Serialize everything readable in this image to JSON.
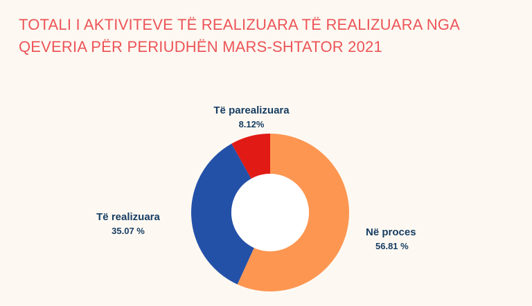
{
  "title": {
    "line1": "TOTALI I AKTIVITEVE TË REALIZUARA TË REALIZUARA NGA",
    "line2": "QEVERIA PËR PERIUDHËN MARS-SHTATOR 2021"
  },
  "chart_data": {
    "type": "pie",
    "title": "TOTALI I AKTIVITEVE TË REALIZUARA TË REALIZUARA NGA QEVERIA PËR PERIUDHËN MARS-SHTATOR 2021",
    "donut": true,
    "slices": [
      {
        "label": "Në proces",
        "value": 56.81,
        "value_label": "56.81 %",
        "color": "#fd9651"
      },
      {
        "label": "Të realizuara",
        "value": 35.07,
        "value_label": "35.07 %",
        "color": "#2451a8"
      },
      {
        "label": "Të parealizuara",
        "value": 8.12,
        "value_label": "8.12%",
        "color": "#e11a16"
      }
    ],
    "legend": "none",
    "labels_outside": true
  },
  "colors": {
    "background": "#fdf9f2",
    "title": "#ec5458",
    "label_text": "#173d63",
    "hole": "#ffffff"
  }
}
